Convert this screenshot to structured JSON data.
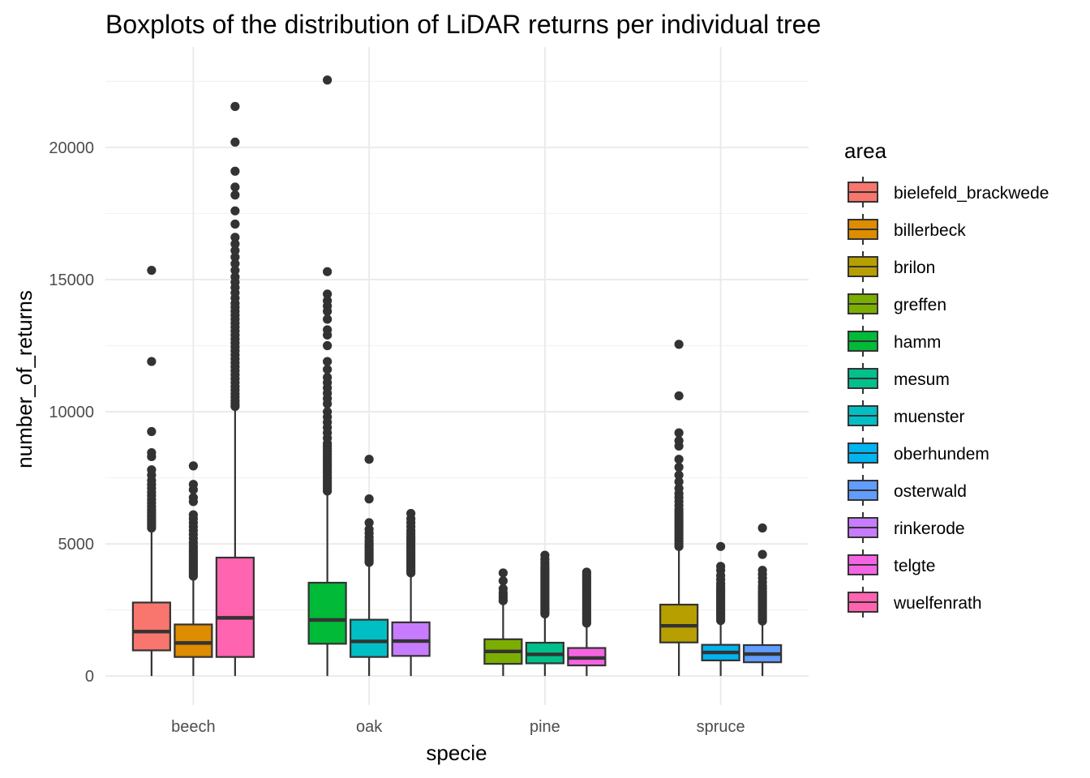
{
  "chart_data": {
    "type": "boxplot",
    "title": "Boxplots of the distribution of LiDAR returns per individual tree",
    "xlabel": "specie",
    "ylabel": "number_of_returns",
    "categories": [
      "beech",
      "oak",
      "pine",
      "spruce"
    ],
    "y_ticks": [
      0,
      5000,
      10000,
      15000,
      20000
    ],
    "ylim": [
      -1100,
      23800
    ],
    "grid": true,
    "legend": {
      "title": "area",
      "placement": "right",
      "entries": [
        {
          "name": "bielefeld_brackwede",
          "color": "#F8766D"
        },
        {
          "name": "billerbeck",
          "color": "#DE8C00"
        },
        {
          "name": "brilon",
          "color": "#B79F00"
        },
        {
          "name": "greffen",
          "color": "#7CAE00"
        },
        {
          "name": "hamm",
          "color": "#00BA38"
        },
        {
          "name": "mesum",
          "color": "#00C08B"
        },
        {
          "name": "muenster",
          "color": "#00BFC4"
        },
        {
          "name": "oberhundem",
          "color": "#00B4F0"
        },
        {
          "name": "osterwald",
          "color": "#619CFF"
        },
        {
          "name": "rinkerode",
          "color": "#C77CFF"
        },
        {
          "name": "telgte",
          "color": "#F564E3"
        },
        {
          "name": "wuelfenrath",
          "color": "#FF64B0"
        }
      ]
    },
    "boxes": [
      {
        "category": "beech",
        "slot": 0,
        "area": "bielefeld_brackwede",
        "color": "#F8766D",
        "min": 0,
        "q1": 970,
        "median": 1680,
        "q3": 2780,
        "whisker_high": 5500,
        "outliers": [
          5600,
          5680,
          5760,
          5850,
          5930,
          6020,
          6100,
          6200,
          6300,
          6420,
          6550,
          6680,
          6820,
          6950,
          7100,
          7250,
          7400,
          7600,
          7800,
          8300,
          8450,
          9250,
          11900,
          15350
        ]
      },
      {
        "category": "beech",
        "slot": 1,
        "area": "billerbeck",
        "color": "#DE8C00",
        "min": 0,
        "q1": 720,
        "median": 1250,
        "q3": 1950,
        "whisker_high": 3700,
        "outliers": [
          3780,
          3860,
          3940,
          4020,
          4100,
          4180,
          4260,
          4350,
          4440,
          4530,
          4620,
          4720,
          4820,
          4920,
          5050,
          5200,
          5350,
          5500,
          5650,
          5800,
          5950,
          6100,
          6600,
          6750,
          7050,
          7250,
          7950
        ]
      },
      {
        "category": "beech",
        "slot": 2,
        "area": "wuelfenrath",
        "color": "#FF64B0",
        "min": 0,
        "q1": 720,
        "median": 2200,
        "q3": 4480,
        "whisker_high": 10100,
        "outliers": [
          10200,
          10300,
          10420,
          10550,
          10680,
          10820,
          10950,
          11100,
          11250,
          11400,
          11550,
          11700,
          11850,
          12000,
          12150,
          12300,
          12450,
          12600,
          12750,
          12900,
          13050,
          13200,
          13350,
          13500,
          13650,
          13800,
          13950,
          14100,
          14300,
          14500,
          14700,
          14900,
          15100,
          15350,
          15600,
          15850,
          16100,
          16350,
          16600,
          17100,
          17600,
          18200,
          18500,
          19100,
          20200,
          21550
        ]
      },
      {
        "category": "oak",
        "slot": 0,
        "area": "hamm",
        "color": "#00BA38",
        "min": 0,
        "q1": 1220,
        "median": 2120,
        "q3": 3530,
        "whisker_high": 6900,
        "outliers": [
          7000,
          7100,
          7200,
          7300,
          7400,
          7500,
          7600,
          7700,
          7800,
          7900,
          8000,
          8100,
          8200,
          8300,
          8400,
          8500,
          8600,
          8700,
          8800,
          9000,
          9200,
          9400,
          9600,
          9800,
          10000,
          10300,
          10500,
          10700,
          10900,
          11100,
          11300,
          11600,
          11900,
          12500,
          12900,
          13100,
          13500,
          13800,
          14000,
          14200,
          14450,
          15300,
          22550
        ]
      },
      {
        "category": "oak",
        "slot": 1,
        "area": "muenster",
        "color": "#00BFC4",
        "min": 0,
        "q1": 720,
        "median": 1310,
        "q3": 2130,
        "whisker_high": 4200,
        "outliers": [
          4300,
          4380,
          4460,
          4540,
          4620,
          4700,
          4780,
          4860,
          4940,
          5020,
          5120,
          5250,
          5400,
          5550,
          5800,
          6700,
          8200
        ]
      },
      {
        "category": "oak",
        "slot": 2,
        "area": "rinkerode",
        "color": "#C77CFF",
        "min": 0,
        "q1": 760,
        "median": 1320,
        "q3": 2030,
        "whisker_high": 3850,
        "outliers": [
          3900,
          3970,
          4040,
          4110,
          4180,
          4260,
          4340,
          4420,
          4500,
          4580,
          4660,
          4740,
          4820,
          4900,
          4980,
          5060,
          5140,
          5220,
          5300,
          5400,
          5500,
          5650,
          5800,
          5950,
          6150
        ]
      },
      {
        "category": "pine",
        "slot": 0,
        "area": "greffen",
        "color": "#7CAE00",
        "min": 0,
        "q1": 460,
        "median": 930,
        "q3": 1390,
        "whisker_high": 2750,
        "outliers": [
          2850,
          2950,
          3050,
          3150,
          3300,
          3600,
          3900
        ]
      },
      {
        "category": "pine",
        "slot": 1,
        "area": "mesum",
        "color": "#00C08B",
        "min": 0,
        "q1": 480,
        "median": 820,
        "q3": 1260,
        "whisker_high": 2300,
        "outliers": [
          2350,
          2420,
          2490,
          2560,
          2630,
          2700,
          2770,
          2840,
          2910,
          2980,
          3050,
          3120,
          3190,
          3260,
          3330,
          3400,
          3470,
          3540,
          3610,
          3680,
          3750,
          3820,
          3890,
          3960,
          4030,
          4100,
          4200,
          4300,
          4420,
          4570
        ]
      },
      {
        "category": "pine",
        "slot": 2,
        "area": "telgte",
        "color": "#F564E3",
        "min": 0,
        "q1": 400,
        "median": 680,
        "q3": 1060,
        "whisker_high": 1950,
        "outliers": [
          2000,
          2080,
          2160,
          2240,
          2320,
          2400,
          2480,
          2560,
          2640,
          2720,
          2800,
          2880,
          2960,
          3040,
          3120,
          3200,
          3280,
          3360,
          3440,
          3520,
          3600,
          3680,
          3760,
          3850,
          3930
        ]
      },
      {
        "category": "spruce",
        "slot": 0,
        "area": "brilon",
        "color": "#B79F00",
        "min": 0,
        "q1": 1270,
        "median": 1900,
        "q3": 2700,
        "whisker_high": 4800,
        "outliers": [
          4900,
          5000,
          5100,
          5200,
          5300,
          5400,
          5500,
          5600,
          5700,
          5800,
          5900,
          6000,
          6100,
          6200,
          6300,
          6450,
          6600,
          6750,
          6900,
          7100,
          7350,
          7600,
          7900,
          8200,
          8700,
          8900,
          9200,
          10600,
          12550
        ]
      },
      {
        "category": "spruce",
        "slot": 1,
        "area": "oberhundem",
        "color": "#00B4F0",
        "min": 0,
        "q1": 590,
        "median": 890,
        "q3": 1180,
        "whisker_high": 2050,
        "outliers": [
          2100,
          2180,
          2260,
          2340,
          2420,
          2500,
          2580,
          2660,
          2740,
          2820,
          2900,
          2980,
          3060,
          3140,
          3220,
          3300,
          3400,
          3500,
          3650,
          3800,
          4000,
          4150,
          4900
        ]
      },
      {
        "category": "spruce",
        "slot": 2,
        "area": "osterwald",
        "color": "#619CFF",
        "min": 0,
        "q1": 520,
        "median": 830,
        "q3": 1170,
        "whisker_high": 2000,
        "outliers": [
          2080,
          2160,
          2240,
          2320,
          2400,
          2480,
          2560,
          2640,
          2720,
          2800,
          2880,
          2960,
          3040,
          3120,
          3200,
          3300,
          3400,
          3550,
          3700,
          3850,
          4000,
          4600,
          5600
        ]
      }
    ]
  }
}
